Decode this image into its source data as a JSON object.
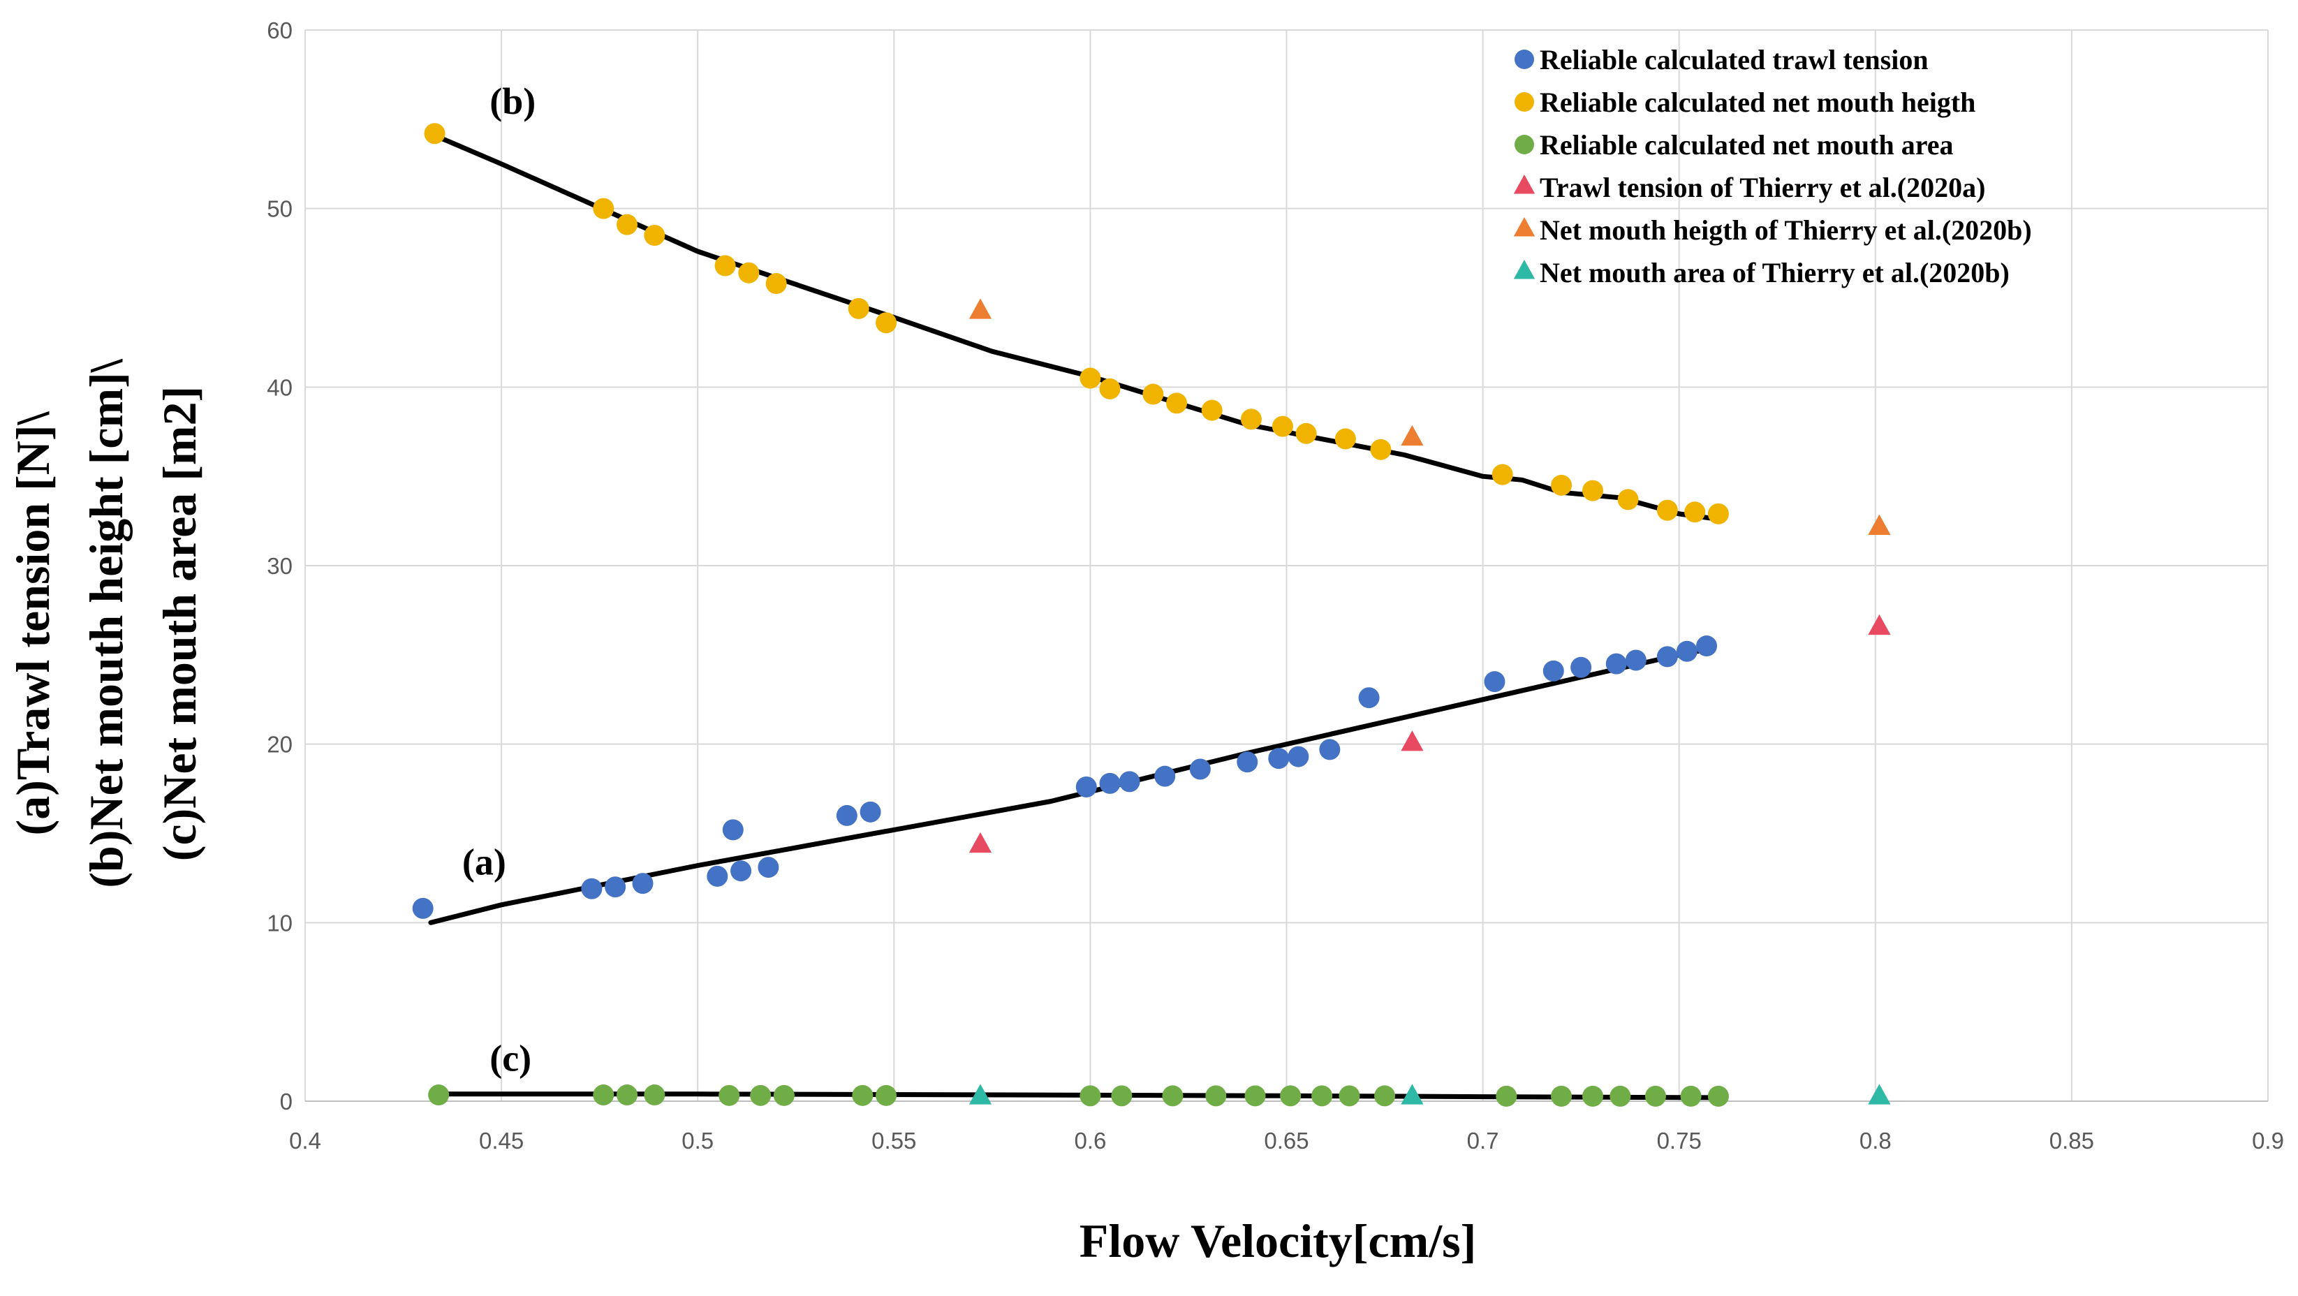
{
  "chart_data": {
    "type": "scatter",
    "xlabel": "Flow Velocity[cm/s]",
    "ylabel_lines": [
      "(a)Trawl tension [N]\\",
      "(b)Net mouth height [cm]\\",
      "(c)Net mouth area [m2]"
    ],
    "xlim": [
      0.4,
      0.9
    ],
    "ylim": [
      0,
      60
    ],
    "x_ticks": [
      "0.4",
      "0.45",
      "0.5",
      "0.55",
      "0.6",
      "0.65",
      "0.7",
      "0.75",
      "0.8",
      "0.85",
      "0.9"
    ],
    "y_ticks": [
      "0",
      "10",
      "20",
      "30",
      "40",
      "50",
      "60"
    ],
    "grid": true,
    "legend_position": "top-right",
    "curve_labels": [
      {
        "text": "(b)",
        "x": 0.447,
        "y": 55.3
      },
      {
        "text": "(a)",
        "x": 0.44,
        "y": 12.7
      },
      {
        "text": "(c)",
        "x": 0.447,
        "y": 1.7
      }
    ],
    "series": [
      {
        "name": "Reliable calculated trawl tension",
        "marker": "circle",
        "color": "#4472C4",
        "x": [
          0.43,
          0.473,
          0.479,
          0.486,
          0.505,
          0.509,
          0.511,
          0.518,
          0.538,
          0.544,
          0.599,
          0.605,
          0.61,
          0.619,
          0.628,
          0.64,
          0.648,
          0.653,
          0.661,
          0.671,
          0.703,
          0.718,
          0.725,
          0.734,
          0.739,
          0.747,
          0.752,
          0.757
        ],
        "y": [
          10.8,
          11.9,
          12.0,
          12.2,
          12.6,
          15.2,
          12.9,
          13.1,
          16.0,
          16.2,
          17.6,
          17.8,
          17.9,
          18.2,
          18.6,
          19.0,
          19.2,
          19.3,
          19.7,
          22.6,
          23.5,
          24.1,
          24.3,
          24.5,
          24.7,
          24.9,
          25.2,
          25.5
        ]
      },
      {
        "name": "Reliable calculated net mouth heigth",
        "marker": "circle",
        "color": "#F0B400",
        "x": [
          0.433,
          0.476,
          0.482,
          0.489,
          0.507,
          0.513,
          0.52,
          0.541,
          0.548,
          0.6,
          0.605,
          0.616,
          0.622,
          0.631,
          0.641,
          0.649,
          0.655,
          0.665,
          0.674,
          0.705,
          0.72,
          0.728,
          0.737,
          0.747,
          0.754,
          0.76
        ],
        "y": [
          54.2,
          50.0,
          49.1,
          48.5,
          46.8,
          46.4,
          45.8,
          44.4,
          43.6,
          40.5,
          39.9,
          39.6,
          39.1,
          38.7,
          38.2,
          37.8,
          37.4,
          37.1,
          36.5,
          35.1,
          34.5,
          34.2,
          33.7,
          33.1,
          33.0,
          32.9
        ]
      },
      {
        "name": "Reliable calculated net mouth area",
        "marker": "circle",
        "color": "#70AD47",
        "x": [
          0.434,
          0.476,
          0.482,
          0.489,
          0.508,
          0.516,
          0.522,
          0.542,
          0.548,
          0.6,
          0.608,
          0.621,
          0.632,
          0.642,
          0.651,
          0.659,
          0.666,
          0.675,
          0.706,
          0.72,
          0.728,
          0.735,
          0.744,
          0.753,
          0.76
        ],
        "y": [
          0.35,
          0.35,
          0.35,
          0.35,
          0.32,
          0.32,
          0.32,
          0.32,
          0.32,
          0.3,
          0.3,
          0.3,
          0.3,
          0.3,
          0.3,
          0.3,
          0.3,
          0.3,
          0.28,
          0.28,
          0.28,
          0.28,
          0.28,
          0.28,
          0.28
        ]
      },
      {
        "name": "Trawl tension of Thierry et al.(2020a)",
        "marker": "triangle",
        "color": "#E84A62",
        "x": [
          0.572,
          0.682,
          0.801
        ],
        "y": [
          14.4,
          20.1,
          26.6
        ]
      },
      {
        "name": "Net mouth heigth of Thierry et al.(2020b)",
        "marker": "triangle",
        "color": "#ED7D31",
        "x": [
          0.572,
          0.682,
          0.801
        ],
        "y": [
          44.3,
          37.2,
          32.2
        ]
      },
      {
        "name": "Net mouth area of Thierry et al.(2020b)",
        "marker": "triangle",
        "color": "#2EB8A6",
        "x": [
          0.572,
          0.682,
          0.801
        ],
        "y": [
          0.3,
          0.3,
          0.3
        ]
      }
    ],
    "fit_lines": [
      {
        "name": "fit (a) trawl tension",
        "color": "#000000",
        "x": [
          0.432,
          0.45,
          0.5,
          0.55,
          0.59,
          0.64,
          0.7,
          0.75,
          0.757
        ],
        "y": [
          10.0,
          11.0,
          13.2,
          15.2,
          16.8,
          19.5,
          22.5,
          25.0,
          25.3
        ]
      },
      {
        "name": "fit (b) net mouth height",
        "color": "#000000",
        "x": [
          0.434,
          0.45,
          0.5,
          0.55,
          0.575,
          0.6,
          0.64,
          0.68,
          0.7,
          0.71,
          0.72,
          0.735,
          0.75,
          0.76
        ],
        "y": [
          54.0,
          52.5,
          47.6,
          43.9,
          42.0,
          40.6,
          37.9,
          36.2,
          35.0,
          34.8,
          34.1,
          33.8,
          32.9,
          32.6
        ]
      },
      {
        "name": "fit (c) net mouth area",
        "color": "#000000",
        "x": [
          0.435,
          0.5,
          0.588,
          0.65,
          0.7,
          0.76
        ],
        "y": [
          0.4,
          0.4,
          0.35,
          0.3,
          0.25,
          0.2
        ]
      }
    ]
  }
}
